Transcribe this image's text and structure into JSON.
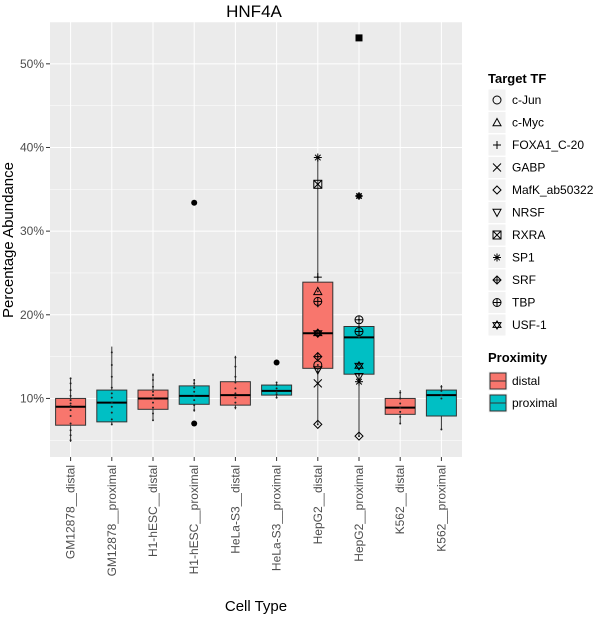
{
  "chart_data": {
    "type": "boxplot",
    "title": "HNF4A",
    "xlabel": "Cell Type",
    "ylabel": "Percentage Abundance",
    "ylim": [
      3.0,
      55.0
    ],
    "yticks": [
      10,
      20,
      30,
      40,
      50
    ],
    "ytick_labels": [
      "10%",
      "20%",
      "30%",
      "40%",
      "50%"
    ],
    "grid": true,
    "legend_position": "right",
    "categories": [
      "GM12878__distal",
      "GM12878__proximal",
      "H1-hESC__distal",
      "H1-hESC__proximal",
      "HeLa-S3__distal",
      "HeLa-S3__proximal",
      "HepG2__distal",
      "HepG2__proximal",
      "K562__distal",
      "K562__proximal"
    ],
    "proximity": [
      "distal",
      "proximal",
      "distal",
      "proximal",
      "distal",
      "proximal",
      "distal",
      "proximal",
      "distal",
      "proximal"
    ],
    "boxes": [
      {
        "min": 4.8,
        "q1": 6.8,
        "median": 9.0,
        "q3": 10.0,
        "max": 12.5,
        "outliers": [],
        "points": [
          5.0,
          5.6,
          6.2,
          7.0,
          7.9,
          8.6,
          9.1,
          9.4,
          9.8,
          10.3,
          11.0,
          11.8,
          12.4
        ]
      },
      {
        "min": 6.8,
        "q1": 7.2,
        "median": 9.5,
        "q3": 11.0,
        "max": 16.2,
        "outliers": [],
        "points": [
          6.9,
          7.5,
          8.3,
          9.0,
          9.5,
          10.1,
          10.6,
          11.3,
          12.6,
          14.0,
          15.5
        ]
      },
      {
        "min": 7.3,
        "q1": 8.7,
        "median": 10.0,
        "q3": 11.0,
        "max": 13.0,
        "outliers": [],
        "points": [
          7.4,
          8.2,
          8.9,
          9.5,
          10.0,
          10.4,
          10.8,
          11.4,
          12.2,
          12.8
        ]
      },
      {
        "min": 8.4,
        "q1": 9.3,
        "median": 10.3,
        "q3": 11.5,
        "max": 12.3,
        "outliers": [
          33.4,
          7.0
        ],
        "points": [
          8.6,
          9.2,
          9.8,
          10.3,
          10.8,
          11.3,
          11.8,
          12.2
        ]
      },
      {
        "min": 8.7,
        "q1": 9.2,
        "median": 10.4,
        "q3": 12.0,
        "max": 15.1,
        "outliers": [],
        "points": [
          8.9,
          9.5,
          10.1,
          10.6,
          11.2,
          11.9,
          12.6,
          13.8,
          14.9
        ]
      },
      {
        "min": 10.0,
        "q1": 10.4,
        "median": 10.9,
        "q3": 11.6,
        "max": 12.0,
        "outliers": [
          14.3
        ],
        "points": [
          10.1,
          10.5,
          10.8,
          11.2,
          11.6,
          11.9
        ]
      },
      {
        "min": 6.9,
        "q1": 13.6,
        "median": 17.8,
        "q3": 23.9,
        "max": 38.8,
        "outliers": [],
        "points": [
          6.9,
          11.8,
          13.2,
          14.0,
          15.0,
          17.8,
          21.0,
          22.8,
          24.5,
          35.6,
          38.8
        ]
      },
      {
        "min": 5.5,
        "q1": 12.9,
        "median": 17.3,
        "q3": 18.6,
        "max": 19.5,
        "outliers": [
          53.1,
          34.2
        ],
        "points": [
          5.5,
          12.0,
          12.8,
          13.6,
          14.0,
          17.3,
          18.6,
          19.4
        ]
      },
      {
        "min": 6.9,
        "q1": 8.1,
        "median": 8.9,
        "q3": 10.0,
        "max": 11.0,
        "outliers": [],
        "points": [
          7.0,
          7.8,
          8.4,
          8.9,
          9.4,
          10.0,
          10.7
        ]
      },
      {
        "min": 6.2,
        "q1": 7.9,
        "median": 10.4,
        "q3": 11.0,
        "max": 11.6,
        "outliers": [],
        "points": [
          6.3,
          10.0,
          10.4,
          10.9,
          11.4
        ]
      }
    ],
    "fill_colors": {
      "distal": "#f8766d",
      "proximal": "#00bfc4"
    }
  },
  "legend": {
    "target_tf": {
      "title": "Target TF",
      "items": [
        {
          "label": "c-Jun",
          "symbol": "circle-open"
        },
        {
          "label": "c-Myc",
          "symbol": "triangle-open"
        },
        {
          "label": "FOXA1_C-20",
          "symbol": "plus"
        },
        {
          "label": "GABP",
          "symbol": "cross"
        },
        {
          "label": "MafK_ab50322",
          "symbol": "diamond-open"
        },
        {
          "label": "NRSF",
          "symbol": "triangle-down-open"
        },
        {
          "label": "RXRA",
          "symbol": "square-cross"
        },
        {
          "label": "SP1",
          "symbol": "asterisk"
        },
        {
          "label": "SRF",
          "symbol": "diamond-plus"
        },
        {
          "label": "TBP",
          "symbol": "circle-plus"
        },
        {
          "label": "USF-1",
          "symbol": "star-of-david"
        }
      ]
    },
    "proximity": {
      "title": "Proximity",
      "items": [
        {
          "label": "distal",
          "color": "#f8766d"
        },
        {
          "label": "proximal",
          "color": "#00bfc4"
        }
      ]
    }
  }
}
